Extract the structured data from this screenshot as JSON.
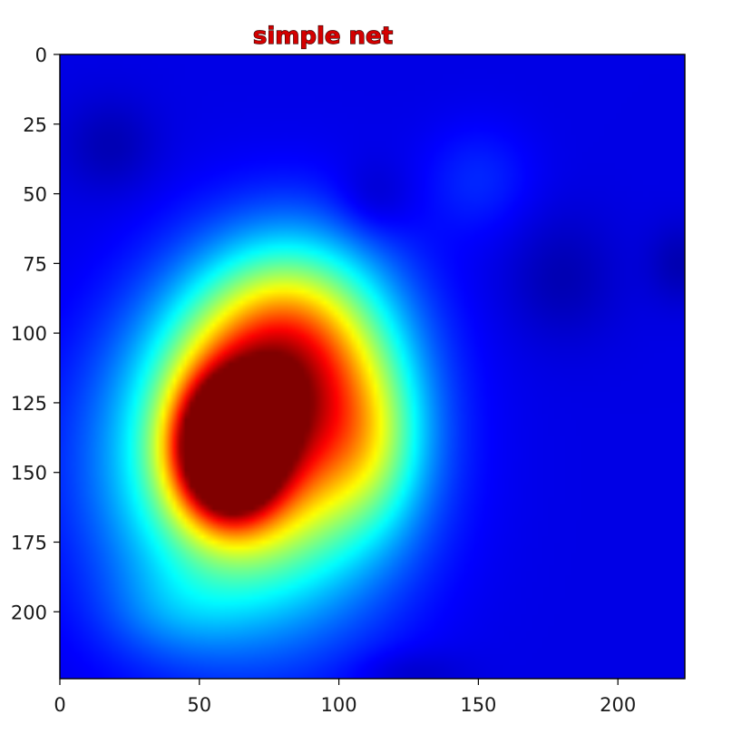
{
  "chart_data": {
    "type": "heatmap",
    "title": "simple net",
    "colormap": "jet",
    "xlabel": "",
    "ylabel": "",
    "xlim": [
      0,
      224
    ],
    "ylim": [
      224,
      0
    ],
    "x_ticks": [
      0,
      50,
      100,
      150,
      200
    ],
    "y_ticks": [
      0,
      25,
      50,
      75,
      100,
      125,
      150,
      175,
      200
    ],
    "x_tick_labels": [
      "0",
      "50",
      "100",
      "150",
      "200"
    ],
    "y_tick_labels": [
      "0",
      "25",
      "50",
      "75",
      "100",
      "125",
      "150",
      "175",
      "200"
    ],
    "grid": false,
    "colors": {
      "title": "#d40000",
      "low": "#00008f",
      "high": "#800000"
    },
    "hotspots": [
      {
        "x": 60,
        "y": 142,
        "sigma_x": 12,
        "sigma_y": 16,
        "value": 0.95
      },
      {
        "x": 78,
        "y": 120,
        "sigma_x": 26,
        "sigma_y": 28,
        "value": 0.45
      },
      {
        "x": 68,
        "y": 150,
        "sigma_x": 34,
        "sigma_y": 38,
        "value": 0.5
      },
      {
        "x": 85,
        "y": 95,
        "sigma_x": 24,
        "sigma_y": 24,
        "value": 0.25
      },
      {
        "x": 112,
        "y": 140,
        "sigma_x": 14,
        "sigma_y": 22,
        "value": 0.18
      },
      {
        "x": 150,
        "y": 45,
        "sigma_x": 14,
        "sigma_y": 14,
        "value": 0.06
      },
      {
        "x": 40,
        "y": 200,
        "sigma_x": 18,
        "sigma_y": 12,
        "value": 0.06
      }
    ],
    "cold_spots": [
      {
        "x": 18,
        "y": 33,
        "sigma_x": 12,
        "sigma_y": 12,
        "value": -0.05
      },
      {
        "x": 112,
        "y": 53,
        "sigma_x": 10,
        "sigma_y": 10,
        "value": -0.05
      },
      {
        "x": 180,
        "y": 80,
        "sigma_x": 14,
        "sigma_y": 16,
        "value": -0.05
      },
      {
        "x": 222,
        "y": 75,
        "sigma_x": 8,
        "sigma_y": 10,
        "value": -0.05
      },
      {
        "x": 125,
        "y": 222,
        "sigma_x": 14,
        "sigma_y": 6,
        "value": -0.04
      }
    ],
    "baseline": 0.1
  }
}
